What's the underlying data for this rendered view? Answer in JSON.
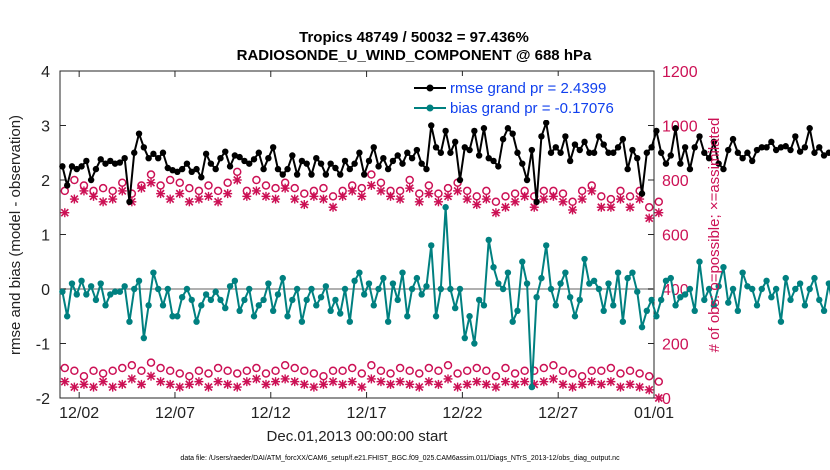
{
  "chart_data": {
    "type": "line",
    "title_line1": "Tropics 48749 / 50032 = 97.436%",
    "title_line2": "RADIOSONDE_U_WIND_COMPONENT @ 688 hPa",
    "xlabel": "Dec.01,2013 00:00:00 start",
    "ylabel_left": "rmse and bias (model - observation)",
    "ylabel_right": "# of obs: o=possible; ×=assimilated",
    "footnote": "data file: /Users/raeder/DAI/ATM_forcXX/CAM6_setup/f.e21.FHIST_BGC.f09_025.CAM6assim.011/Diags_NTrS_2013-12/obs_diag_output.nc",
    "ylim_left": [
      -2,
      4
    ],
    "ylim_right": [
      0,
      1200
    ],
    "yticks_left": [
      "-2",
      "-1",
      "0",
      "1",
      "2",
      "3",
      "4"
    ],
    "yticks_right": [
      "0",
      "200",
      "400",
      "600",
      "800",
      "1000",
      "1200"
    ],
    "xlim_days": [
      0,
      31
    ],
    "xticks": [
      {
        "label": "12/02",
        "day": 1
      },
      {
        "label": "12/07",
        "day": 6
      },
      {
        "label": "12/12",
        "day": 11
      },
      {
        "label": "12/17",
        "day": 16
      },
      {
        "label": "12/22",
        "day": 21
      },
      {
        "label": "12/27",
        "day": 26
      },
      {
        "label": "01/01",
        "day": 31
      }
    ],
    "zero_line": 0,
    "colors": {
      "rmse": "#000000",
      "bias": "#008080",
      "obs": "#cc1155",
      "zero": "#b0b0b0",
      "legend_text": "#1040ee"
    },
    "series": [
      {
        "name": "rmse",
        "legend": "rmse grand pr = 2.4399",
        "step_days": 0.25,
        "values": [
          2.25,
          1.9,
          2.25,
          2.2,
          2.25,
          2.35,
          2.0,
          2.2,
          2.38,
          2.3,
          2.35,
          2.3,
          2.32,
          2.4,
          1.6,
          2.5,
          2.85,
          2.6,
          2.4,
          2.48,
          2.4,
          2.5,
          2.22,
          2.18,
          2.15,
          2.2,
          2.3,
          2.15,
          2.2,
          2.05,
          2.48,
          2.3,
          2.2,
          2.4,
          2.52,
          2.25,
          2.45,
          2.42,
          2.35,
          2.3,
          2.38,
          2.5,
          2.2,
          2.4,
          2.6,
          2.2,
          2.1,
          2.2,
          2.45,
          2.1,
          2.35,
          2.3,
          2.1,
          2.4,
          2.3,
          2.1,
          2.3,
          2.22,
          2.1,
          2.35,
          2.2,
          2.3,
          2.5,
          2.1,
          2.35,
          2.6,
          2.25,
          2.4,
          2.2,
          2.35,
          2.45,
          2.3,
          2.5,
          2.4,
          2.55,
          2.3,
          2.2,
          3.0,
          2.6,
          2.5,
          2.9,
          2.5,
          2.7,
          2.0,
          2.6,
          2.55,
          2.9,
          2.45,
          2.95,
          2.4,
          2.35,
          2.25,
          2.75,
          2.95,
          2.85,
          2.5,
          2.3,
          2.0,
          2.55,
          1.6,
          2.8,
          3.05,
          2.5,
          2.6,
          2.5,
          2.8,
          2.35,
          2.65,
          2.55,
          2.7,
          2.5,
          2.5,
          2.8,
          2.65,
          2.5,
          2.5,
          2.6,
          2.75,
          2.2,
          2.55,
          2.4,
          1.75,
          2.5,
          2.6,
          2.9,
          2.5,
          2.3,
          2.45,
          2.95,
          2.3,
          2.6,
          2.2,
          2.6,
          2.8,
          2.5,
          2.4,
          2.7,
          2.3,
          2.2,
          2.55,
          2.75,
          2.5,
          2.4,
          2.5,
          2.35,
          2.55,
          2.6,
          2.6,
          2.7,
          2.55,
          2.6,
          2.62,
          2.55,
          2.8,
          2.52,
          2.6,
          2.95,
          2.5,
          2.6,
          2.45,
          2.5,
          2.6,
          2.45,
          2.5,
          2.55,
          2.6,
          2.7,
          2.55,
          2.75,
          2.6,
          2.45,
          2.4
        ]
      },
      {
        "name": "bias",
        "legend": "bias grand pr = -0.17076",
        "step_days": 0.25,
        "values": [
          -0.05,
          -0.5,
          0.1,
          -0.1,
          0.15,
          -0.1,
          0.05,
          -0.2,
          0.1,
          -0.3,
          -0.1,
          -0.05,
          -0.05,
          0.05,
          -0.6,
          0.0,
          0.15,
          -0.9,
          -0.3,
          0.3,
          0.0,
          -0.3,
          0.0,
          -0.5,
          -0.5,
          -0.15,
          0.0,
          -0.2,
          -0.6,
          -0.3,
          -0.1,
          -0.2,
          -0.05,
          -0.2,
          -0.35,
          0.05,
          0.15,
          -0.4,
          -0.2,
          0.0,
          -0.5,
          -0.3,
          -0.2,
          0.1,
          -0.4,
          -0.1,
          0.2,
          -0.5,
          -0.2,
          0.0,
          -0.6,
          -0.2,
          0.0,
          -0.3,
          -0.15,
          0.05,
          -0.4,
          -0.2,
          -0.45,
          0.0,
          -0.6,
          0.15,
          0.3,
          -0.1,
          0.1,
          -0.3,
          0.0,
          0.2,
          -0.6,
          0.1,
          -0.2,
          0.3,
          -0.5,
          0.0,
          0.2,
          -0.1,
          0.05,
          0.8,
          -0.5,
          0.0,
          1.5,
          0.0,
          -0.35,
          0.0,
          -0.9,
          -0.5,
          -1.0,
          -0.2,
          -0.3,
          0.9,
          0.4,
          0.1,
          0.0,
          0.3,
          -0.6,
          -0.4,
          0.5,
          0.1,
          -1.8,
          -0.15,
          0.2,
          0.8,
          0.0,
          -0.3,
          0.1,
          0.3,
          -0.15,
          -0.5,
          -0.2,
          0.55,
          0.1,
          0.15,
          0.0,
          -0.4,
          0.1,
          -0.3,
          0.3,
          -0.6,
          0.2,
          0.3,
          -0.05,
          -0.7,
          -0.4,
          -0.2,
          -0.5,
          -0.2,
          0.15,
          0.2,
          -0.3,
          -0.15,
          -0.1,
          0.0,
          -0.4,
          0.5,
          -0.2,
          0.0,
          -0.3,
          0.05,
          0.4,
          -0.25,
          0.0,
          -0.4,
          0.3,
          0.05,
          0.0,
          -0.3,
          0.0,
          0.15,
          -0.15,
          0.0,
          -0.6,
          0.2,
          -0.2,
          0.0,
          0.1,
          -0.3,
          0.0,
          0.2,
          -0.2,
          -0.4,
          0.1,
          -0.4,
          -0.1,
          0.0,
          0.25,
          -0.6,
          0.0,
          -0.4,
          0.0,
          0.4,
          -0.8,
          -0.15
        ]
      }
    ],
    "obs_possible": {
      "marker": "o",
      "step_days": 0.5,
      "high": [
        760,
        800,
        780,
        760,
        770,
        760,
        790,
        750,
        780,
        820,
        780,
        800,
        790,
        770,
        760,
        780,
        760,
        790,
        830,
        760,
        800,
        780,
        770,
        790,
        770,
        750,
        760,
        770,
        740,
        760,
        780,
        770,
        820,
        790,
        760,
        760,
        800,
        750,
        780,
        750,
        770,
        790,
        760,
        740,
        760,
        720,
        740,
        750,
        760,
        740,
        760,
        760,
        750,
        720,
        760,
        780,
        740,
        730,
        760,
        740,
        760,
        700,
        720
      ],
      "low": [
        110,
        100,
        80,
        100,
        90,
        100,
        110,
        120,
        100,
        130,
        110,
        100,
        90,
        80,
        100,
        90,
        110,
        100,
        90,
        100,
        110,
        90,
        100,
        120,
        110,
        100,
        90,
        80,
        100,
        100,
        110,
        90,
        120,
        100,
        90,
        110,
        100,
        90,
        110,
        100,
        120,
        90,
        100,
        110,
        100,
        80,
        110,
        90,
        100,
        100,
        110,
        120,
        100,
        90,
        80,
        100,
        100,
        110,
        90,
        100,
        90,
        80,
        60
      ]
    },
    "obs_assimilated": {
      "marker": "x",
      "step_days": 0.5,
      "high": [
        680,
        730,
        760,
        740,
        720,
        730,
        760,
        720,
        770,
        790,
        750,
        730,
        750,
        720,
        730,
        740,
        720,
        750,
        800,
        740,
        760,
        740,
        730,
        770,
        730,
        710,
        740,
        730,
        700,
        740,
        760,
        740,
        780,
        760,
        740,
        730,
        770,
        720,
        750,
        720,
        740,
        760,
        730,
        710,
        730,
        680,
        700,
        720,
        740,
        700,
        730,
        740,
        720,
        690,
        730,
        760,
        700,
        700,
        730,
        700,
        730,
        660,
        680
      ],
      "low": [
        60,
        40,
        50,
        40,
        60,
        40,
        50,
        70,
        50,
        80,
        60,
        50,
        40,
        50,
        60,
        40,
        60,
        50,
        40,
        60,
        70,
        50,
        60,
        70,
        60,
        50,
        40,
        50,
        60,
        50,
        60,
        40,
        70,
        60,
        50,
        60,
        50,
        40,
        60,
        50,
        70,
        40,
        50,
        60,
        50,
        40,
        60,
        50,
        60,
        50,
        60,
        70,
        50,
        40,
        50,
        60,
        50,
        60,
        40,
        50,
        40,
        30,
        0
      ]
    }
  }
}
